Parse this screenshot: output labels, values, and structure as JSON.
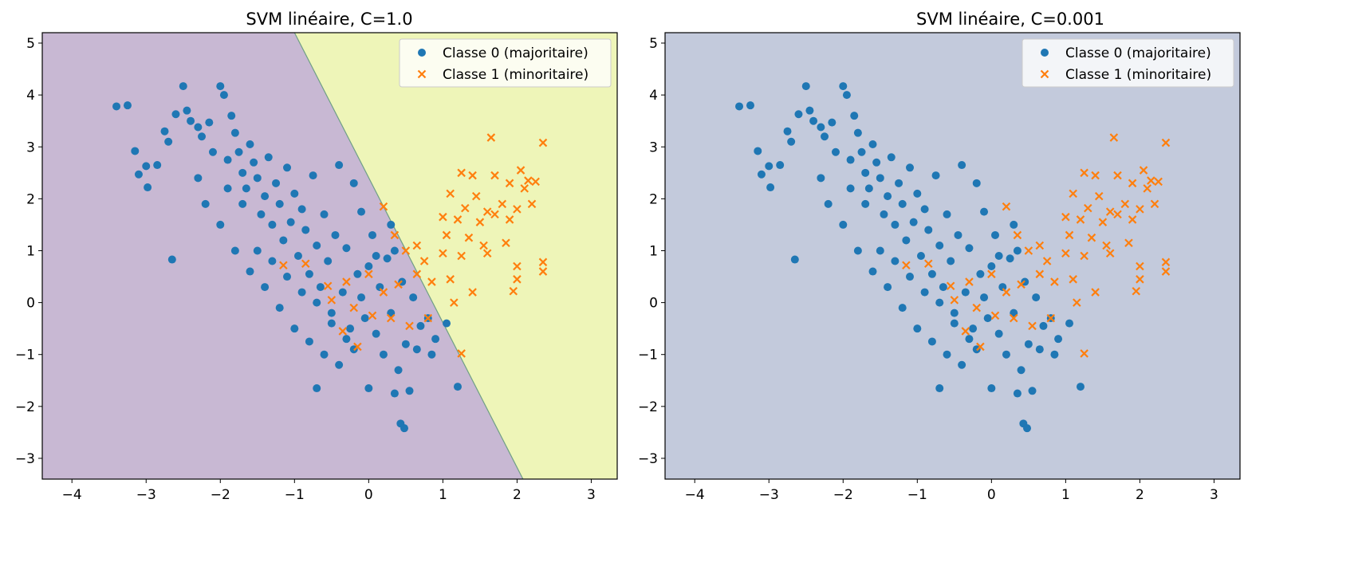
{
  "chart_data": [
    {
      "type": "scatter",
      "title": "SVM linéaire, C=1.0",
      "xlabel": "",
      "ylabel": "",
      "xlim": [
        -4.4,
        3.35
      ],
      "ylim": [
        -3.4,
        5.2
      ],
      "xticks": [
        -4,
        -3,
        -2,
        -1,
        0,
        1,
        2,
        3
      ],
      "yticks": [
        -3,
        -2,
        -1,
        0,
        1,
        2,
        3,
        4,
        5
      ],
      "grid": false,
      "legend_position": "top-right",
      "decision_boundary": {
        "type": "line",
        "points": [
          [
            -1.0,
            5.2
          ],
          [
            2.08,
            -3.4
          ]
        ],
        "left_region_color": "#c8b8d3",
        "right_region_color": "#eef5b8"
      },
      "series": [
        {
          "name": "Classe 0 (majoritaire)",
          "marker": "circle",
          "color": "#1f77b4",
          "points": [
            [
              -3.4,
              3.78
            ],
            [
              -3.25,
              3.8
            ],
            [
              -3.15,
              2.92
            ],
            [
              -3.1,
              2.47
            ],
            [
              -3.0,
              2.63
            ],
            [
              -2.98,
              2.22
            ],
            [
              -2.85,
              2.65
            ],
            [
              -2.75,
              3.3
            ],
            [
              -2.7,
              3.1
            ],
            [
              -2.65,
              0.83
            ],
            [
              -2.6,
              3.63
            ],
            [
              -2.5,
              4.17
            ],
            [
              -2.45,
              3.7
            ],
            [
              -2.4,
              3.5
            ],
            [
              -2.3,
              3.38
            ],
            [
              -2.25,
              3.2
            ],
            [
              -2.2,
              1.9
            ],
            [
              -2.15,
              3.47
            ],
            [
              -2.1,
              2.9
            ],
            [
              -2.0,
              4.17
            ],
            [
              -1.95,
              4.0
            ],
            [
              -1.9,
              2.75
            ],
            [
              -1.85,
              3.6
            ],
            [
              -1.8,
              3.27
            ],
            [
              -1.75,
              2.9
            ],
            [
              -1.7,
              2.5
            ],
            [
              -1.65,
              2.2
            ],
            [
              -1.6,
              3.05
            ],
            [
              -1.55,
              2.7
            ],
            [
              -1.5,
              2.4
            ],
            [
              -1.45,
              1.7
            ],
            [
              -1.4,
              2.05
            ],
            [
              -1.35,
              2.8
            ],
            [
              -1.3,
              1.5
            ],
            [
              -1.25,
              2.3
            ],
            [
              -1.2,
              1.9
            ],
            [
              -1.15,
              1.2
            ],
            [
              -1.1,
              2.6
            ],
            [
              -1.05,
              1.55
            ],
            [
              -1.0,
              2.1
            ],
            [
              -0.95,
              0.9
            ],
            [
              -0.9,
              1.8
            ],
            [
              -0.85,
              1.4
            ],
            [
              -0.8,
              0.55
            ],
            [
              -0.75,
              2.45
            ],
            [
              -0.7,
              1.1
            ],
            [
              -0.65,
              0.3
            ],
            [
              -0.6,
              1.7
            ],
            [
              -0.55,
              0.8
            ],
            [
              -0.5,
              -0.2
            ],
            [
              -0.45,
              1.3
            ],
            [
              -0.4,
              2.65
            ],
            [
              -0.35,
              0.2
            ],
            [
              -0.3,
              1.05
            ],
            [
              -0.25,
              -0.5
            ],
            [
              -0.2,
              2.3
            ],
            [
              -0.15,
              0.55
            ],
            [
              -0.1,
              1.75
            ],
            [
              -0.05,
              -0.3
            ],
            [
              0.0,
              0.7
            ],
            [
              0.05,
              1.3
            ],
            [
              0.1,
              -0.6
            ],
            [
              0.15,
              0.3
            ],
            [
              0.2,
              -1.0
            ],
            [
              0.25,
              0.85
            ],
            [
              0.3,
              -0.2
            ],
            [
              0.35,
              1.0
            ],
            [
              0.4,
              -1.3
            ],
            [
              0.45,
              0.4
            ],
            [
              0.5,
              -0.8
            ],
            [
              0.55,
              -1.7
            ],
            [
              0.6,
              0.1
            ],
            [
              0.65,
              -0.9
            ],
            [
              0.7,
              -0.45
            ],
            [
              0.8,
              -0.3
            ],
            [
              0.85,
              -1.0
            ],
            [
              0.9,
              -0.7
            ],
            [
              1.05,
              -0.4
            ],
            [
              1.2,
              -1.62
            ],
            [
              -2.0,
              1.5
            ],
            [
              -1.8,
              1.0
            ],
            [
              -1.6,
              0.6
            ],
            [
              -1.4,
              0.3
            ],
            [
              -1.2,
              -0.1
            ],
            [
              -1.0,
              -0.5
            ],
            [
              -0.8,
              -0.75
            ],
            [
              -0.6,
              -1.0
            ],
            [
              -0.4,
              -1.2
            ],
            [
              -0.2,
              -0.9
            ],
            [
              -0.7,
              -1.65
            ],
            [
              0.0,
              -1.65
            ],
            [
              0.35,
              -1.75
            ],
            [
              0.43,
              -2.33
            ],
            [
              0.48,
              -2.42
            ],
            [
              -2.3,
              2.4
            ],
            [
              -1.9,
              2.2
            ],
            [
              -1.7,
              1.9
            ],
            [
              -1.5,
              1.0
            ],
            [
              -1.3,
              0.8
            ],
            [
              -1.1,
              0.5
            ],
            [
              -0.9,
              0.2
            ],
            [
              -0.7,
              0.0
            ],
            [
              -0.5,
              -0.4
            ],
            [
              -0.3,
              -0.7
            ],
            [
              -0.1,
              0.1
            ],
            [
              0.1,
              0.9
            ],
            [
              0.3,
              1.5
            ]
          ]
        },
        {
          "name": "Classe 1 (minoritaire)",
          "marker": "x",
          "color": "#ff7f0e",
          "points": [
            [
              1.65,
              3.18
            ],
            [
              2.35,
              3.08
            ],
            [
              1.25,
              2.5
            ],
            [
              1.4,
              2.45
            ],
            [
              2.05,
              2.55
            ],
            [
              2.15,
              2.35
            ],
            [
              2.25,
              2.33
            ],
            [
              1.7,
              2.45
            ],
            [
              1.9,
              2.3
            ],
            [
              1.1,
              2.1
            ],
            [
              1.45,
              2.05
            ],
            [
              2.1,
              2.2
            ],
            [
              1.3,
              1.82
            ],
            [
              1.6,
              1.75
            ],
            [
              1.8,
              1.9
            ],
            [
              2.2,
              1.9
            ],
            [
              0.2,
              1.85
            ],
            [
              1.0,
              1.65
            ],
            [
              1.2,
              1.6
            ],
            [
              1.5,
              1.55
            ],
            [
              1.7,
              1.7
            ],
            [
              1.9,
              1.6
            ],
            [
              2.0,
              1.8
            ],
            [
              0.35,
              1.3
            ],
            [
              0.65,
              1.1
            ],
            [
              1.05,
              1.3
            ],
            [
              1.35,
              1.25
            ],
            [
              1.55,
              1.1
            ],
            [
              1.85,
              1.15
            ],
            [
              0.5,
              1.0
            ],
            [
              0.75,
              0.8
            ],
            [
              1.0,
              0.95
            ],
            [
              1.25,
              0.9
            ],
            [
              1.6,
              0.95
            ],
            [
              2.0,
              0.7
            ],
            [
              2.35,
              0.78
            ],
            [
              -1.15,
              0.72
            ],
            [
              -0.85,
              0.75
            ],
            [
              -0.55,
              0.32
            ],
            [
              -0.3,
              0.4
            ],
            [
              0.0,
              0.55
            ],
            [
              0.2,
              0.2
            ],
            [
              0.4,
              0.35
            ],
            [
              0.65,
              0.55
            ],
            [
              0.85,
              0.4
            ],
            [
              1.1,
              0.45
            ],
            [
              1.4,
              0.2
            ],
            [
              2.0,
              0.45
            ],
            [
              2.35,
              0.6
            ],
            [
              -0.5,
              0.05
            ],
            [
              -0.2,
              -0.1
            ],
            [
              0.05,
              -0.25
            ],
            [
              0.3,
              -0.3
            ],
            [
              0.55,
              -0.45
            ],
            [
              0.8,
              -0.3
            ],
            [
              -0.35,
              -0.55
            ],
            [
              -0.15,
              -0.85
            ],
            [
              1.15,
              0.0
            ],
            [
              1.25,
              -0.98
            ],
            [
              1.95,
              0.22
            ]
          ]
        }
      ]
    },
    {
      "type": "scatter",
      "title": "SVM linéaire, C=0.001",
      "xlabel": "",
      "ylabel": "",
      "xlim": [
        -4.4,
        3.35
      ],
      "ylim": [
        -3.4,
        5.2
      ],
      "xticks": [
        -4,
        -3,
        -2,
        -1,
        0,
        1,
        2,
        3
      ],
      "yticks": [
        -3,
        -2,
        -1,
        0,
        1,
        2,
        3,
        4,
        5
      ],
      "grid": false,
      "legend_position": "top-right",
      "decision_boundary": {
        "type": "none",
        "region_color": "#c3cadc"
      },
      "series_same_as_first_chart": true
    }
  ]
}
